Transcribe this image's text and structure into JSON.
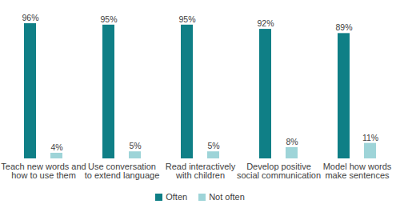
{
  "chart_data": {
    "type": "bar",
    "categories": [
      "Teach new words and how to use them",
      "Use conversation to extend language",
      "Read interactively with children",
      "Develop positive social communication",
      "Model how words make sentences"
    ],
    "series": [
      {
        "name": "Often",
        "color": "#0f7f86",
        "values": [
          96,
          95,
          95,
          92,
          89
        ],
        "value_labels": [
          "96%",
          "95%",
          "95%",
          "92%",
          "89%"
        ]
      },
      {
        "name": "Not often",
        "color": "#9ed4d8",
        "values": [
          4,
          5,
          5,
          8,
          11
        ],
        "value_labels": [
          "4%",
          "5%",
          "5%",
          "8%",
          "11%"
        ]
      }
    ],
    "ylim": [
      0,
      100
    ],
    "data_labels": true,
    "tick_labels": "x",
    "legend": "bottom"
  }
}
